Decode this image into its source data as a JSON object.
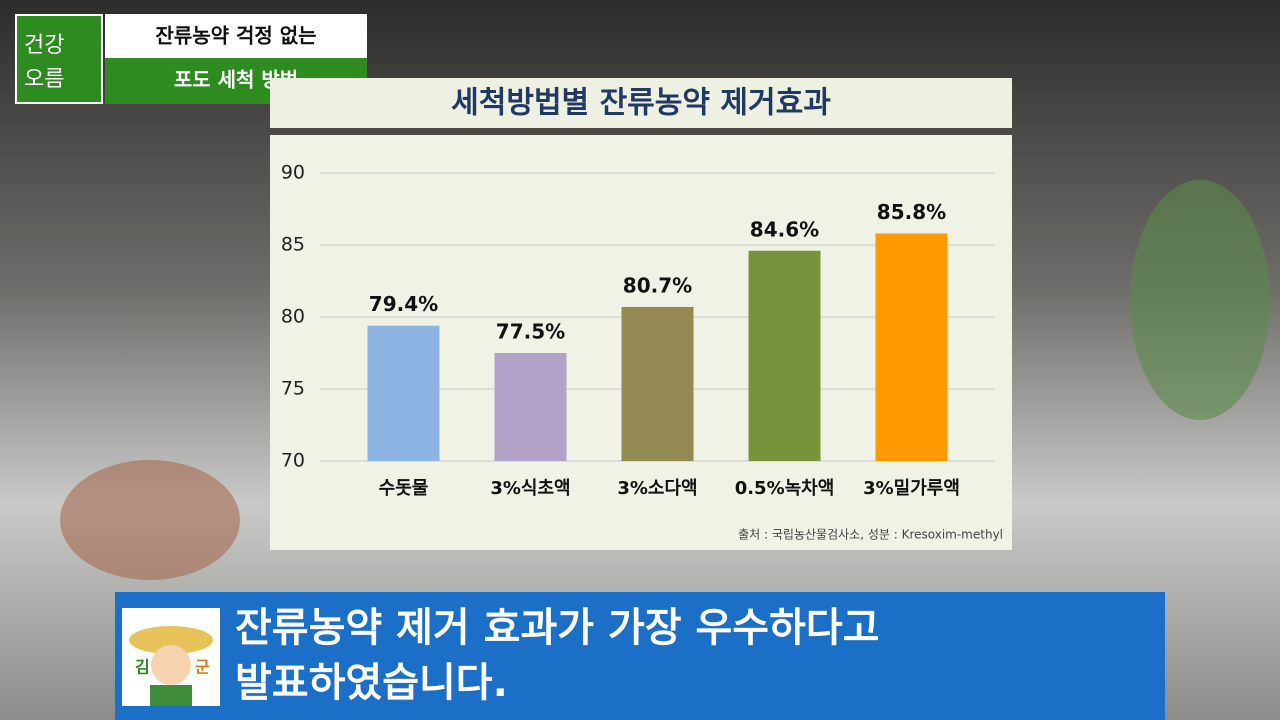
{
  "logo": [
    "건강",
    "오름"
  ],
  "header": [
    "잔류농약 걱정 없는",
    "포도 세척 방법"
  ],
  "caption": [
    "잔류농약 제거 효과가 가장 우수하다고",
    "발표하였습니다."
  ],
  "avatar": [
    "김",
    "군"
  ],
  "chart_data": {
    "type": "bar",
    "title": "세척방법별 잔류농약 제거효과",
    "source": "출처 : 국립농산물검사소, 성분 : Kresoxim-methyl",
    "categories": [
      "수돗물",
      "3%식초액",
      "3%소다액",
      "0.5%녹차액",
      "3%밀가루액"
    ],
    "values": [
      79.4,
      77.5,
      80.7,
      84.6,
      85.8
    ],
    "value_labels": [
      "79.4%",
      "77.5%",
      "80.7%",
      "84.6%",
      "85.8%"
    ],
    "colors": [
      "#8eb4e3",
      "#b3a2c7",
      "#948a54",
      "#77933c",
      "#ff9900"
    ],
    "ylim": [
      70,
      90
    ],
    "yticks": [
      70,
      75,
      80,
      85,
      90
    ],
    "grid": true
  }
}
